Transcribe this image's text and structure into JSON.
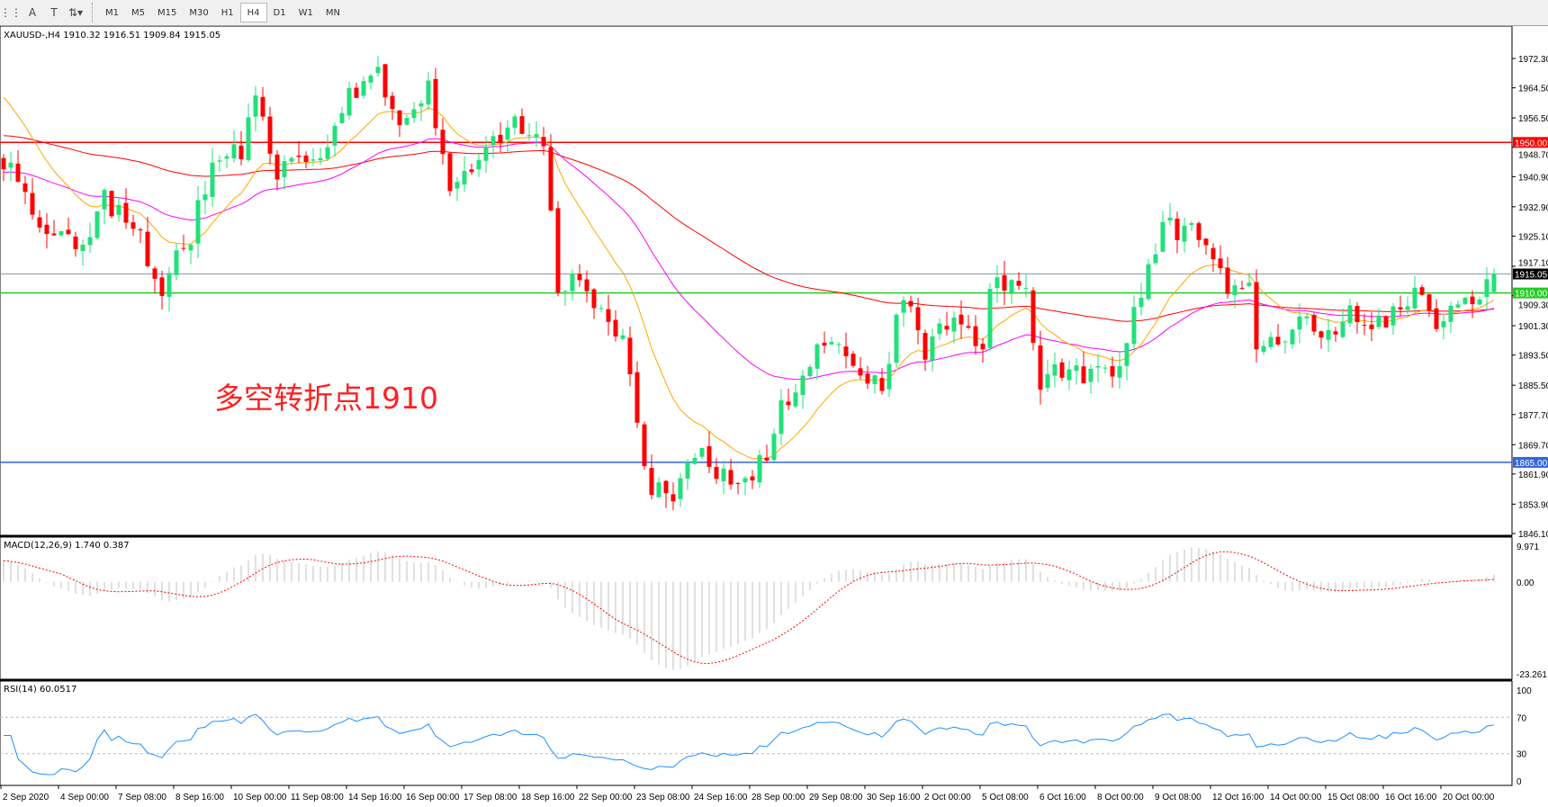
{
  "toolbar": {
    "icons": [
      "grid-lines-icon",
      "text-label-icon",
      "text-box-icon",
      "arrows-icon"
    ],
    "timeframes": [
      "M1",
      "M5",
      "M15",
      "M30",
      "H1",
      "H4",
      "D1",
      "W1",
      "MN"
    ],
    "active": "H4"
  },
  "header": {
    "symbol_line": "XAUUSD-,H4  1910.32 1916.51 1909.84 1915.05"
  },
  "annotation": "多空转折点1910",
  "chart_data": {
    "type": "candlestick",
    "symbol": "XAUUSD-",
    "timeframe": "H4",
    "ohlc_last": {
      "open": 1910.32,
      "high": 1916.51,
      "low": 1909.84,
      "close": 1915.05
    },
    "price_ticks": [
      "1972.30",
      "1964.50",
      "1956.50",
      "1948.70",
      "1940.90",
      "1932.90",
      "1925.10",
      "1917.10",
      "1909.30",
      "1901.30",
      "1893.50",
      "1885.50",
      "1877.70",
      "1869.70",
      "1861.90",
      "1853.90",
      "1846.10"
    ],
    "ylim": [
      1846.1,
      1972.3
    ],
    "levels": [
      {
        "price": 1950.0,
        "label": "1950.00",
        "color": "#ff0000"
      },
      {
        "price": 1910.0,
        "label": "1910.00",
        "color": "#22cc22"
      },
      {
        "price": 1865.0,
        "label": "1865.00",
        "color": "#3366dd"
      }
    ],
    "current_price": {
      "price": 1915.05,
      "label": "1915.05"
    },
    "time_labels": [
      "2 Sep 2020",
      "4 Sep 00:00",
      "7 Sep 08:00",
      "8 Sep 16:00",
      "10 Sep 00:00",
      "11 Sep 08:00",
      "14 Sep 16:00",
      "16 Sep 00:00",
      "17 Sep 08:00",
      "18 Sep 16:00",
      "22 Sep 00:00",
      "23 Sep 08:00",
      "24 Sep 16:00",
      "28 Sep 00:00",
      "29 Sep 08:00",
      "30 Sep 16:00",
      "2 Oct 00:00",
      "5 Oct 08:00",
      "6 Oct 16:00",
      "8 Oct 00:00",
      "9 Oct 08:00",
      "12 Oct 16:00",
      "14 Oct 00:00",
      "15 Oct 08:00",
      "16 Oct 16:00",
      "20 Oct 00:00"
    ],
    "close_path": [
      [
        0,
        1945
      ],
      [
        5,
        1930
      ],
      [
        11,
        1920
      ],
      [
        14,
        1935
      ],
      [
        18,
        1928
      ],
      [
        22,
        1912
      ],
      [
        26,
        1925
      ],
      [
        29,
        1945
      ],
      [
        33,
        1948
      ],
      [
        35,
        1960
      ],
      [
        38,
        1942
      ],
      [
        44,
        1945
      ],
      [
        47,
        1960
      ],
      [
        52,
        1968
      ],
      [
        55,
        1955
      ],
      [
        59,
        1965
      ],
      [
        62,
        1940
      ],
      [
        66,
        1945
      ],
      [
        70,
        1955
      ],
      [
        75,
        1950
      ],
      [
        77,
        1910
      ],
      [
        79,
        1915
      ],
      [
        82,
        1905
      ],
      [
        86,
        1900
      ],
      [
        88,
        1875
      ],
      [
        90,
        1858
      ],
      [
        93,
        1855
      ],
      [
        96,
        1868
      ],
      [
        101,
        1860
      ],
      [
        106,
        1865
      ],
      [
        108,
        1880
      ],
      [
        114,
        1897
      ],
      [
        119,
        1890
      ],
      [
        122,
        1885
      ],
      [
        125,
        1910
      ],
      [
        128,
        1895
      ],
      [
        132,
        1905
      ],
      [
        136,
        1895
      ],
      [
        137,
        1912
      ],
      [
        142,
        1910
      ],
      [
        144,
        1885
      ],
      [
        147,
        1890
      ],
      [
        151,
        1887
      ],
      [
        155,
        1890
      ],
      [
        158,
        1910
      ],
      [
        161,
        1928
      ],
      [
        166,
        1925
      ],
      [
        170,
        1910
      ],
      [
        173,
        1915
      ],
      [
        174,
        1898
      ],
      [
        177,
        1895
      ],
      [
        180,
        1903
      ],
      [
        184,
        1898
      ],
      [
        186,
        1905
      ],
      [
        192,
        1902
      ],
      [
        196,
        1910
      ],
      [
        199,
        1903
      ],
      [
        203,
        1907
      ],
      [
        207,
        1915.05
      ]
    ],
    "colors": {
      "bull": "#22e07a",
      "bear": "#ff0000",
      "ma_fast": "#ffa500",
      "ma_mid": "#ff00ff",
      "ma_slow": "#ff0000",
      "rsi": "#1e90ff",
      "macd_hist": "#c0c0c0",
      "macd_signal": "#ff0000"
    },
    "macd": {
      "label": "MACD(12,26,9) 1.740 0.387",
      "ticks": [
        "9.971",
        "0.00",
        "-23.261"
      ],
      "ylim": [
        -23.261,
        9.971
      ]
    },
    "rsi": {
      "label": "RSI(14) 60.0517",
      "ticks": [
        "100",
        "70",
        "30",
        "0"
      ],
      "levels": [
        70,
        30
      ]
    }
  }
}
